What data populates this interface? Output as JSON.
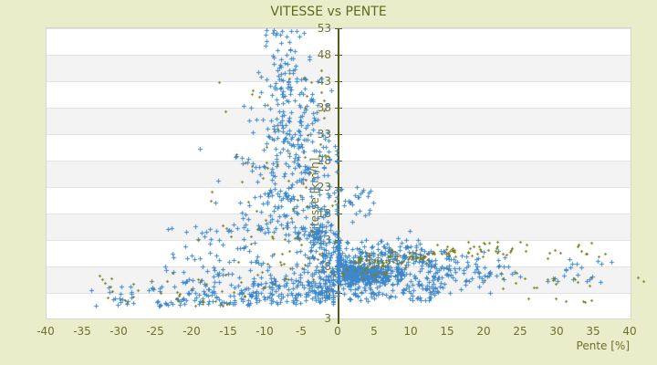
{
  "colors": {
    "page_background": "#e9edca",
    "band_gray": "#f3f3f3",
    "gridline": "#e3e3e3",
    "axis_line": "#565b1a",
    "tick_text": "#6f7030",
    "title_text": "#5c6b20",
    "series_blue": "#3e87c9",
    "series_olive": "#7d7d20"
  },
  "chart_data": {
    "type": "scatter",
    "title": "VITESSE vs PENTE",
    "xlabel": "Pente [%]",
    "ylabel": "Vitesse [km/h]",
    "xlim": [
      -40,
      40
    ],
    "ylim": [
      -1.83,
      53
    ],
    "x_ticks": [
      -40,
      -35,
      -30,
      -25,
      -20,
      -15,
      -10,
      -5,
      0,
      5,
      10,
      15,
      20,
      25,
      30,
      35,
      40
    ],
    "y_ticks": [
      53,
      48,
      43,
      38,
      33,
      28,
      23,
      18,
      13,
      8,
      3
    ],
    "y_axis_min_label": "3",
    "grid": "horizontal-only",
    "banded_background": true,
    "vertical_axis_at_x_zero": true,
    "legend": "none",
    "seed": 20,
    "series": [
      {
        "name": "series1",
        "color": "#3e87c9",
        "marker": "plus",
        "clusters": [
          {
            "n": 55,
            "x": {
              "d": "u",
              "a": -34,
              "b": -16
            },
            "y": {
              "d": "hn",
              "m": 0.5,
              "s": 2.2,
              "hi": 9
            }
          },
          {
            "n": 30,
            "x": {
              "d": "u",
              "a": -24,
              "b": -12
            },
            "y": {
              "d": "u",
              "a": 9,
              "b": 16
            }
          },
          {
            "n": 260,
            "x": {
              "d": "n",
              "m": -10,
              "s": 6.5,
              "lo": -32,
              "hi": -0.8
            },
            "y": {
              "d": "hn",
              "m": 0.8,
              "s": 4.2,
              "hi": 16
            }
          },
          {
            "n": 230,
            "x": {
              "d": "n",
              "m": -6,
              "s": 3.8,
              "lo": -20,
              "hi": -0.3
            },
            "y": {
              "d": "u",
              "a": 14,
              "b": 31
            }
          },
          {
            "n": 140,
            "x": {
              "d": "n",
              "m": -6.8,
              "s": 2.4,
              "lo": -15,
              "hi": -1
            },
            "y": {
              "d": "u",
              "a": 31,
              "b": 44
            }
          },
          {
            "n": 45,
            "x": {
              "d": "n",
              "m": -7.3,
              "s": 1.5,
              "lo": -11,
              "hi": -4
            },
            "y": {
              "d": "u",
              "a": 44,
              "b": 53
            }
          },
          {
            "n": 170,
            "x": {
              "d": "n",
              "m": -2.2,
              "s": 1.5,
              "lo": -6.5,
              "hi": -0.1
            },
            "y": {
              "d": "u",
              "a": 2,
              "b": 16
            }
          },
          {
            "n": 70,
            "x": {
              "d": "n",
              "m": 0,
              "s": 0.13
            },
            "y": {
              "d": "u",
              "a": 4.5,
              "b": 13
            }
          },
          {
            "n": 430,
            "x": {
              "d": "hn",
              "m": 0.5,
              "s": 4.5,
              "hi": 13
            },
            "y": {
              "d": "n",
              "m": 6.7,
              "s": 1.05,
              "lo": 4.7,
              "hi": 8.7
            }
          },
          {
            "n": 150,
            "x": {
              "d": "u",
              "a": 0.2,
              "b": 13
            },
            "y": {
              "d": "hn",
              "m": 8.7,
              "s": 2.3,
              "hi": 16.5
            }
          },
          {
            "n": 90,
            "x": {
              "d": "u",
              "a": 0.5,
              "b": 14
            },
            "y": {
              "d": "u",
              "a": 1.5,
              "b": 4.7
            }
          },
          {
            "n": 110,
            "x": {
              "d": "hn",
              "m": 12,
              "s": 6,
              "hi": 30
            },
            "y": {
              "d": "n",
              "m": 7.2,
              "s": 2,
              "lo": 3,
              "hi": 11
            }
          },
          {
            "n": 20,
            "x": {
              "d": "u",
              "a": 28,
              "b": 37.5
            },
            "y": {
              "d": "u",
              "a": 5,
              "b": 9.5
            }
          },
          {
            "n": 25,
            "x": {
              "d": "u",
              "a": 0,
              "b": 6
            },
            "y": {
              "d": "u",
              "a": 16,
              "b": 24
            }
          }
        ],
        "points": []
      },
      {
        "name": "series2",
        "color": "#7d7d20",
        "marker": "diamond",
        "clusters": [
          {
            "n": 40,
            "x": {
              "d": "u",
              "a": -33,
              "b": -12
            },
            "y": {
              "d": "hn",
              "m": 0.5,
              "s": 2.8,
              "hi": 12
            }
          },
          {
            "n": 75,
            "x": {
              "d": "n",
              "m": -7.5,
              "s": 5,
              "lo": -26,
              "hi": -0.5
            },
            "y": {
              "d": "u",
              "a": 4,
              "b": 31
            }
          },
          {
            "n": 20,
            "x": {
              "d": "n",
              "m": -8,
              "s": 4.5,
              "lo": -17,
              "hi": -2
            },
            "y": {
              "d": "u",
              "a": 31,
              "b": 46
            }
          },
          {
            "n": 30,
            "x": {
              "d": "u",
              "a": 2,
              "b": 7
            },
            "y": {
              "d": "n",
              "m": 8.9,
              "s": 0.8
            }
          },
          {
            "n": 30,
            "x": {
              "d": "u",
              "a": 7,
              "b": 12
            },
            "y": {
              "d": "n",
              "m": 9.8,
              "s": 0.8
            }
          },
          {
            "n": 20,
            "x": {
              "d": "u",
              "a": 12,
              "b": 17
            },
            "y": {
              "d": "n",
              "m": 10.8,
              "s": 0.9
            }
          },
          {
            "n": 15,
            "x": {
              "d": "u",
              "a": 17,
              "b": 22
            },
            "y": {
              "d": "n",
              "m": 11.6,
              "s": 0.9
            }
          },
          {
            "n": 28,
            "x": {
              "d": "u",
              "a": 15,
              "b": 37
            },
            "y": {
              "d": "n",
              "m": 10.8,
              "s": 1.0
            }
          },
          {
            "n": 18,
            "x": {
              "d": "u",
              "a": 18,
              "b": 37
            },
            "y": {
              "d": "n",
              "m": 5.3,
              "s": 0.7
            }
          },
          {
            "n": 6,
            "x": {
              "d": "u",
              "a": 20,
              "b": 36
            },
            "y": {
              "d": "u",
              "a": 0.5,
              "b": 2.5
            }
          },
          {
            "n": 22,
            "x": {
              "d": "u",
              "a": 0,
              "b": 8
            },
            "y": {
              "d": "u",
              "a": 5.5,
              "b": 9
            }
          }
        ],
        "points": [
          [
            41.0,
            5.9
          ],
          [
            41.7,
            5.3
          ]
        ]
      }
    ]
  }
}
